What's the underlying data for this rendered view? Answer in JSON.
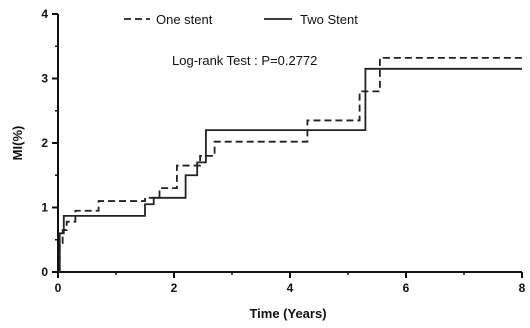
{
  "chart_data": {
    "type": "line",
    "title": "",
    "xlabel": "Time (Years)",
    "ylabel": "MI(%)",
    "xlim": [
      0,
      8
    ],
    "ylim": [
      0,
      4
    ],
    "x_ticks": [
      0,
      2,
      4,
      6,
      8
    ],
    "y_ticks": [
      0,
      1,
      2,
      3,
      4
    ],
    "grid": false,
    "legend_position": "top",
    "annotation": "Log-rank Test : P=0.2772",
    "series": [
      {
        "name": "One stent",
        "style": "dashed",
        "color": "#222222",
        "x": [
          0,
          0.03,
          0.08,
          0.15,
          0.3,
          0.7,
          1.5,
          1.75,
          2.05,
          2.45,
          2.7,
          4.3,
          5.2,
          5.55,
          8
        ],
        "y": [
          0,
          0.45,
          0.65,
          0.78,
          0.95,
          1.1,
          1.15,
          1.3,
          1.65,
          1.8,
          2.02,
          2.35,
          2.8,
          3.32,
          3.32
        ]
      },
      {
        "name": "Two Stent",
        "style": "solid",
        "color": "#222222",
        "x": [
          0,
          0.03,
          0.1,
          1.5,
          1.65,
          2.2,
          2.4,
          2.55,
          5.3,
          5.45,
          8
        ],
        "y": [
          0,
          0.6,
          0.87,
          1.05,
          1.15,
          1.5,
          1.7,
          2.2,
          3.15,
          3.15,
          3.15
        ]
      }
    ]
  }
}
